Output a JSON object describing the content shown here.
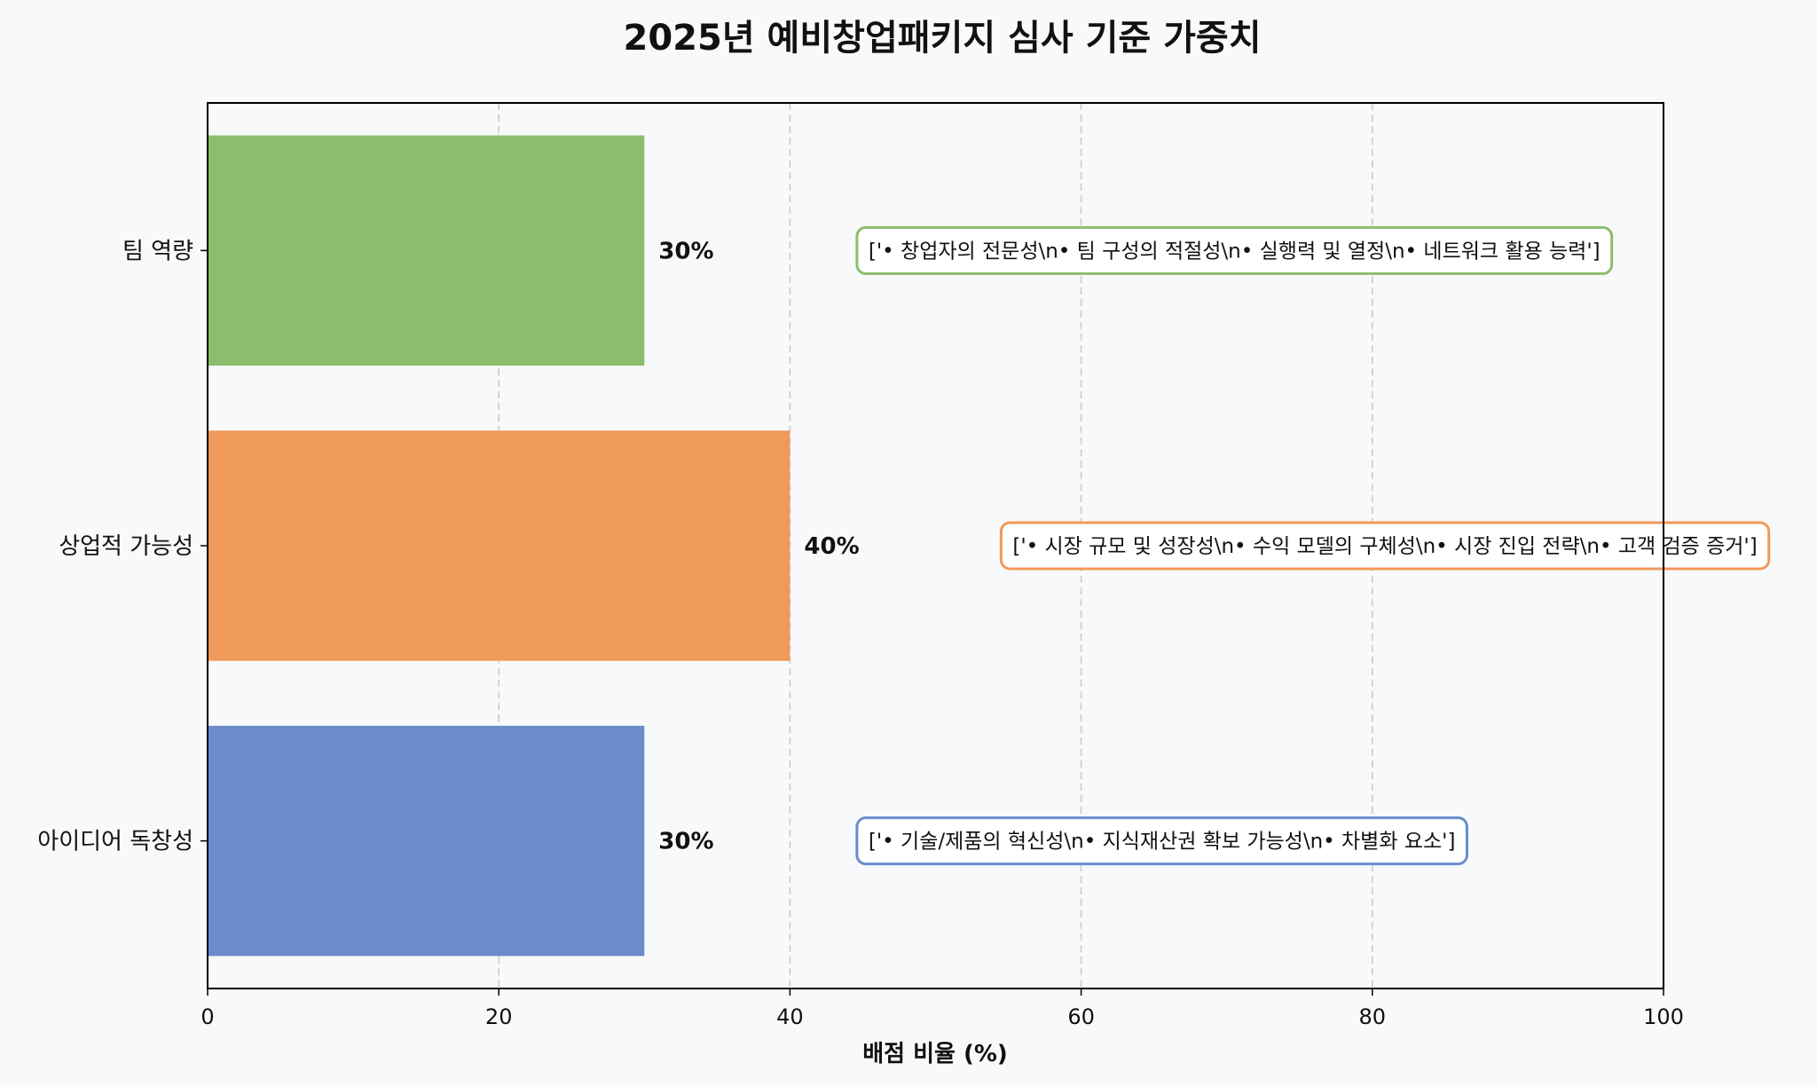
{
  "chart_data": {
    "type": "bar",
    "orientation": "horizontal",
    "title": "2025년 예비창업패키지 심사 기준 가중치",
    "xlabel": "배점 비율 (%)",
    "ylabel": "",
    "xlim": [
      0,
      100
    ],
    "xticks": [
      0,
      20,
      40,
      60,
      80,
      100
    ],
    "grid": "x-dashed",
    "categories": [
      "팀 역량",
      "상업적 가능성",
      "아이디어 독창성"
    ],
    "values": [
      30,
      40,
      30
    ],
    "value_labels": [
      "30%",
      "40%",
      "30%"
    ],
    "colors": [
      "#8cbd6d",
      "#ef9a5a",
      "#6a8ccd"
    ],
    "annotations": [
      {
        "category": "팀 역량",
        "x": 44.6,
        "text": "['• 창업자의 전문성\\n• 팀 구성의 적절성\\n• 실행력 및 열정\\n• 네트워크 활용 능력']",
        "border": "#8cbd6d"
      },
      {
        "category": "상업적 가능성",
        "x": 54.5,
        "text": "['• 시장 규모 및 성장성\\n• 수익 모델의 구체성\\n• 시장 진입 전략\\n• 고객 검증 증거']",
        "border": "#ef9a5a"
      },
      {
        "category": "아이디어 독창성",
        "x": 44.6,
        "text": "['• 기술/제품의 혁신성\\n• 지식재산권 확보 가능성\\n• 차별화 요소']",
        "border": "#6a8ccd"
      }
    ]
  }
}
